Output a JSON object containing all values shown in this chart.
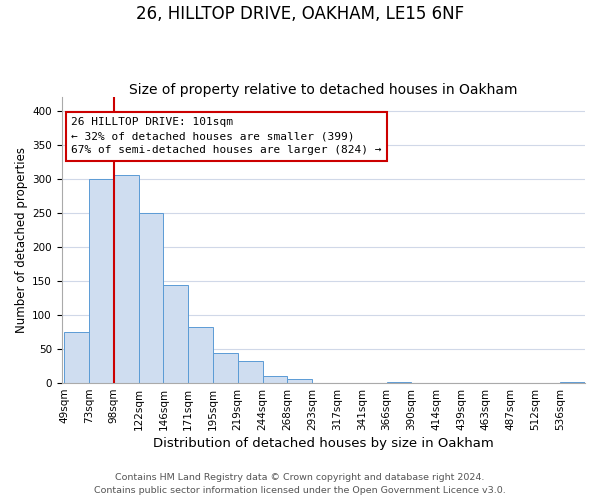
{
  "title1": "26, HILLTOP DRIVE, OAKHAM, LE15 6NF",
  "title2": "Size of property relative to detached houses in Oakham",
  "xlabel": "Distribution of detached houses by size in Oakham",
  "ylabel": "Number of detached properties",
  "bin_labels": [
    "49sqm",
    "73sqm",
    "98sqm",
    "122sqm",
    "146sqm",
    "171sqm",
    "195sqm",
    "219sqm",
    "244sqm",
    "268sqm",
    "293sqm",
    "317sqm",
    "341sqm",
    "366sqm",
    "390sqm",
    "414sqm",
    "439sqm",
    "463sqm",
    "487sqm",
    "512sqm",
    "536sqm"
  ],
  "bar_values": [
    75,
    300,
    305,
    249,
    144,
    83,
    44,
    32,
    10,
    6,
    0,
    0,
    0,
    2,
    0,
    0,
    0,
    0,
    0,
    0,
    2
  ],
  "bar_color": "#cfddf0",
  "bar_edge_color": "#5b9bd5",
  "vline_x_index": 2,
  "vline_color": "#cc0000",
  "annotation_title": "26 HILLTOP DRIVE: 101sqm",
  "annotation_line1": "← 32% of detached houses are smaller (399)",
  "annotation_line2": "67% of semi-detached houses are larger (824) →",
  "annotation_box_facecolor": "#ffffff",
  "annotation_box_edgecolor": "#cc0000",
  "ylim": [
    0,
    420
  ],
  "yticks": [
    0,
    50,
    100,
    150,
    200,
    250,
    300,
    350,
    400
  ],
  "grid_color": "#d0d8e8",
  "footnote1": "Contains HM Land Registry data © Crown copyright and database right 2024.",
  "footnote2": "Contains public sector information licensed under the Open Government Licence v3.0.",
  "title1_fontsize": 12,
  "title2_fontsize": 10,
  "xlabel_fontsize": 9.5,
  "ylabel_fontsize": 8.5,
  "tick_fontsize": 7.5,
  "annotation_fontsize": 8,
  "footnote_fontsize": 6.8
}
